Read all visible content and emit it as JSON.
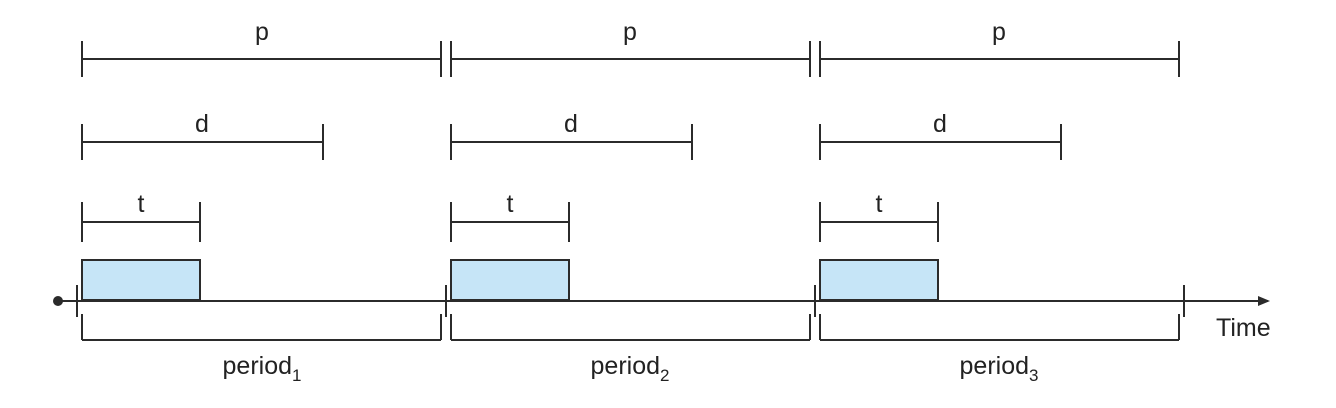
{
  "colors": {
    "line": "#2b2b2b",
    "job_fill": "#c6e5f7",
    "text": "#222222"
  },
  "labels": {
    "period_span": "p",
    "deadline_span": "d",
    "processing_span": "t",
    "axis": "Time"
  },
  "periods": [
    {
      "name": "period",
      "index": "1"
    },
    {
      "name": "period",
      "index": "2"
    },
    {
      "name": "period",
      "index": "3"
    }
  ]
}
